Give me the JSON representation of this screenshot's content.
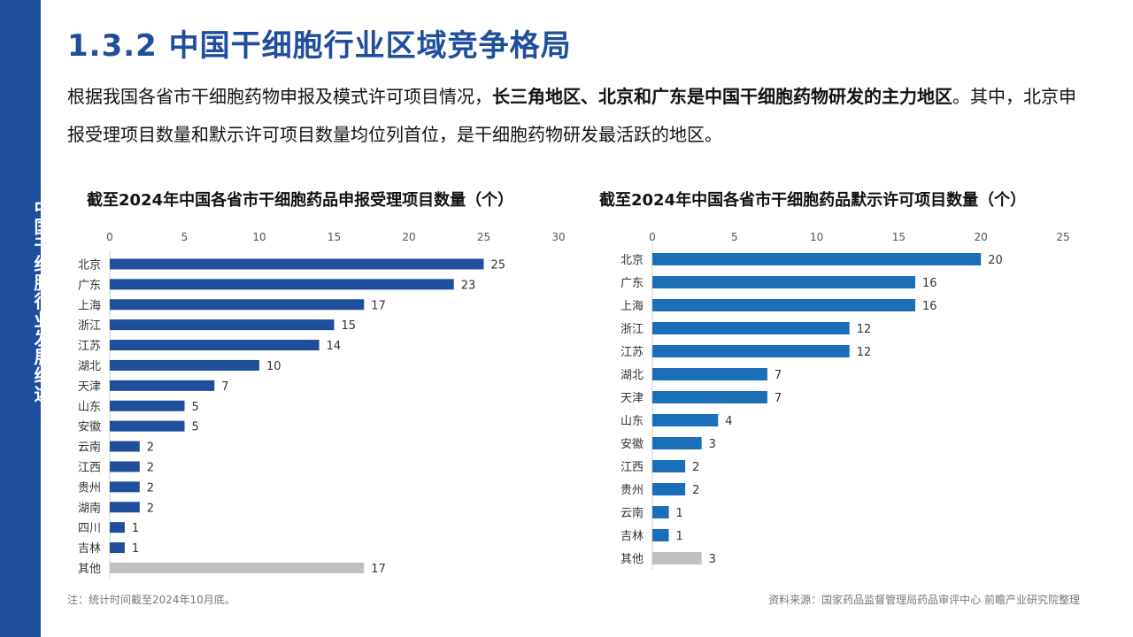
{
  "sidebar": {
    "label": "中国干细胞行业发展综述"
  },
  "header": {
    "title": "1.3.2 中国干细胞行业区域竞争格局"
  },
  "intro": {
    "part1": "根据我国各省市干细胞药物申报及模式许可项目情况，",
    "bold": "长三角地区、北京和广东是中国干细胞药物研发的主力地区",
    "part2": "。其中，北京申报受理项目数量和默示许可项目数量均位列首位，是干细胞药物研发最活跃的地区。"
  },
  "footer": {
    "note": "注：统计时间截至2024年10月底。",
    "source": "资料来源：国家药品监督管理局药品审评中心 前瞻产业研究院整理"
  },
  "chart_data": [
    {
      "type": "bar",
      "orientation": "horizontal",
      "title": "截至2024年中国各省市干细胞药品申报受理项目数量（个）",
      "categories": [
        "北京",
        "广东",
        "上海",
        "浙江",
        "江苏",
        "湖北",
        "天津",
        "山东",
        "安徽",
        "云南",
        "江西",
        "贵州",
        "湖南",
        "四川",
        "吉林",
        "其他"
      ],
      "values": [
        25,
        23,
        17,
        15,
        14,
        10,
        7,
        5,
        5,
        2,
        2,
        2,
        2,
        1,
        1,
        17
      ],
      "xlim": [
        0,
        30
      ],
      "xticks": [
        0,
        5,
        10,
        15,
        20,
        25,
        30
      ],
      "axis_position": "top",
      "grid": false,
      "colors": {
        "bar": "#1f4e9c",
        "other": "#bfbfbf"
      }
    },
    {
      "type": "bar",
      "orientation": "horizontal",
      "title": "截至2024年中国各省市干细胞药品默示许可项目数量（个）",
      "categories": [
        "北京",
        "广东",
        "上海",
        "浙江",
        "江苏",
        "湖北",
        "天津",
        "山东",
        "安徽",
        "江西",
        "贵州",
        "云南",
        "吉林",
        "其他"
      ],
      "values": [
        20,
        16,
        16,
        12,
        12,
        7,
        7,
        4,
        3,
        2,
        2,
        1,
        1,
        3
      ],
      "xlim": [
        0,
        25
      ],
      "xticks": [
        0,
        5,
        10,
        15,
        20,
        25
      ],
      "axis_position": "top",
      "grid": false,
      "colors": {
        "bar": "#1a6fb8",
        "other": "#bfbfbf"
      }
    }
  ]
}
